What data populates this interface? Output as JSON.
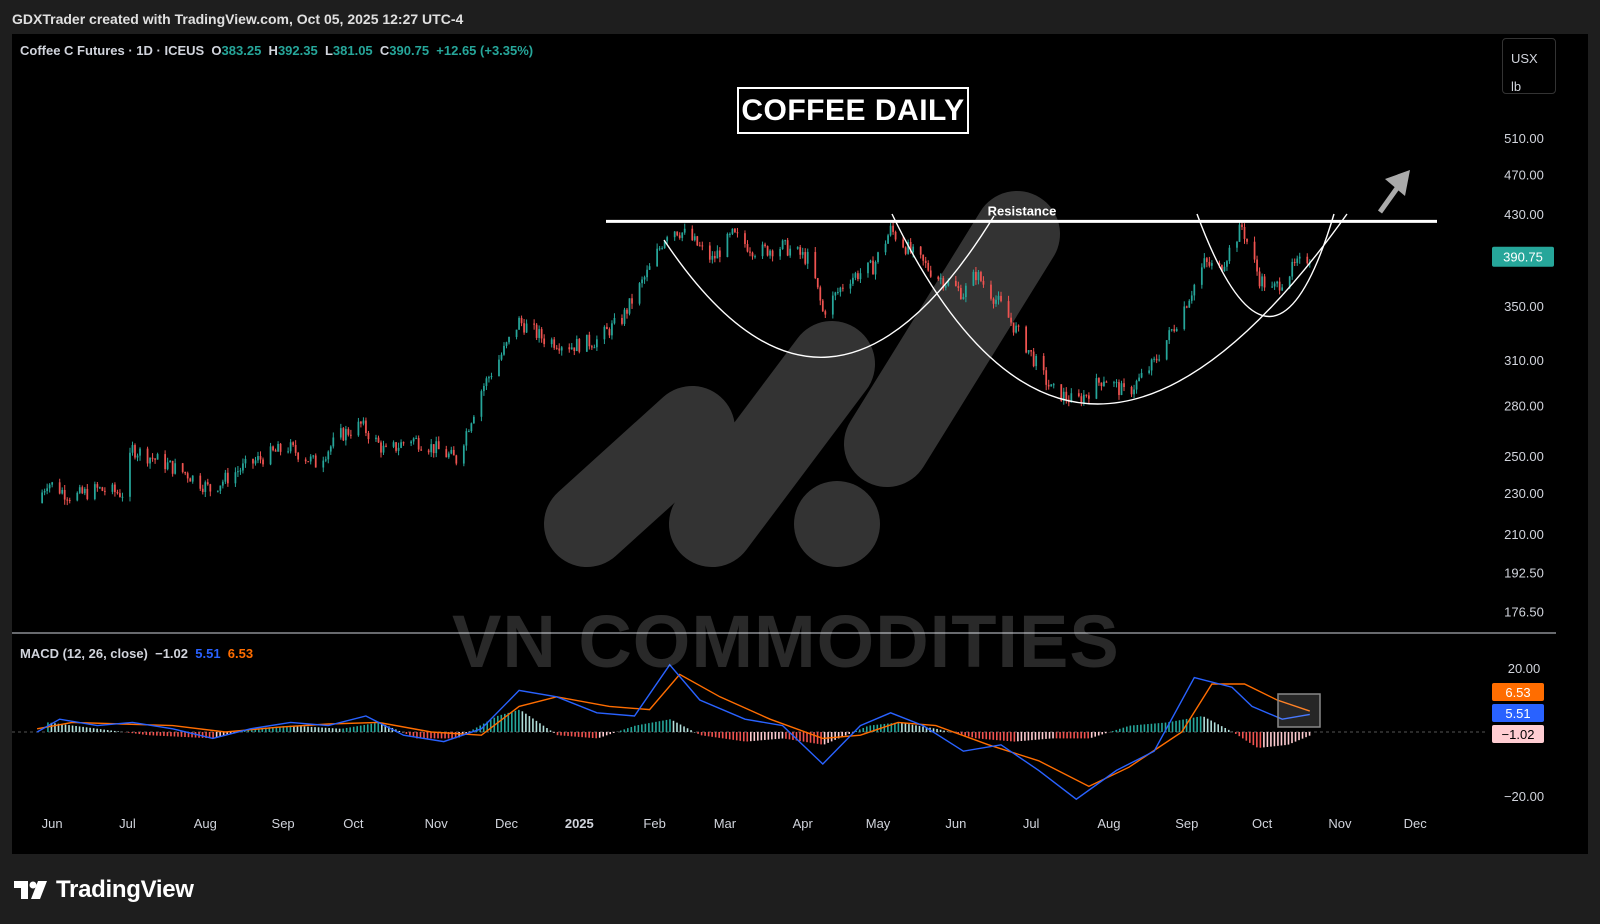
{
  "header": {
    "attribution": "GDXTrader created with TradingView.com, Oct 05, 2025 12:27 UTC-4"
  },
  "legend": {
    "symbol": "Coffee C Futures · 1D · ICEUS",
    "o_label": "O",
    "o_value": "383.25",
    "h_label": "H",
    "h_value": "392.35",
    "l_label": "L",
    "l_value": "381.05",
    "c_label": "C",
    "c_value": "390.75",
    "change": "+12.65 (+3.35%)"
  },
  "units": {
    "currency": "USX",
    "unit": "lb"
  },
  "annotations": {
    "title_box": "COFFEE DAILY",
    "resistance_label": "Resistance",
    "watermark": "VN COMMODITIES"
  },
  "macd_legend": {
    "label": "MACD (12, 26, close)",
    "hist": "−1.02",
    "macd": "5.51",
    "signal": "6.53"
  },
  "footer": {
    "brand": "TradingView"
  },
  "colors": {
    "up": "#26a69a",
    "down": "#ef5350",
    "macd_line": "#2962ff",
    "signal_line": "#ff6d00",
    "background": "#000000"
  },
  "chart_data": [
    {
      "type": "candlestick",
      "ylabel": "",
      "scale": "log",
      "ylim": [
        165,
        560
      ],
      "y_ticks": [
        "510.00",
        "470.00",
        "430.00",
        "350.00",
        "310.00",
        "280.00",
        "250.00",
        "230.00",
        "210.00",
        "192.50",
        "176.50"
      ],
      "x_ticks": [
        "Jun",
        "Jul",
        "Aug",
        "Sep",
        "Oct",
        "Nov",
        "Dec",
        "2025",
        "Feb",
        "Mar",
        "Apr",
        "May",
        "Jun",
        "Jul",
        "Aug",
        "Sep",
        "Oct",
        "Nov",
        "Dec"
      ],
      "last_price_label": "390.75",
      "resistance_level": 423,
      "close_path": [
        [
          "2024-06-01",
          225
        ],
        [
          "2024-06-05",
          236
        ],
        [
          "2024-06-15",
          228
        ],
        [
          "2024-06-25",
          232
        ],
        [
          "2024-07-05",
          230
        ],
        [
          "2024-07-09",
          254
        ],
        [
          "2024-07-20",
          247
        ],
        [
          "2024-07-31",
          240
        ],
        [
          "2024-08-09",
          232
        ],
        [
          "2024-08-20",
          242
        ],
        [
          "2024-08-31",
          250
        ],
        [
          "2024-09-09",
          255
        ],
        [
          "2024-09-20",
          246
        ],
        [
          "2024-09-30",
          262
        ],
        [
          "2024-10-08",
          268
        ],
        [
          "2024-10-18",
          252
        ],
        [
          "2024-10-28",
          260
        ],
        [
          "2024-11-07",
          254
        ],
        [
          "2024-11-15",
          248
        ],
        [
          "2024-11-25",
          290
        ],
        [
          "2024-12-05",
          320
        ],
        [
          "2024-12-10",
          338
        ],
        [
          "2024-12-20",
          325
        ],
        [
          "2024-12-31",
          320
        ],
        [
          "2025-01-10",
          324
        ],
        [
          "2025-01-20",
          340
        ],
        [
          "2025-01-31",
          380
        ],
        [
          "2025-02-08",
          418
        ],
        [
          "2025-02-15",
          410
        ],
        [
          "2025-02-25",
          388
        ],
        [
          "2025-03-05",
          410
        ],
        [
          "2025-03-15",
          395
        ],
        [
          "2025-03-25",
          400
        ],
        [
          "2025-04-05",
          388
        ],
        [
          "2025-04-10",
          345
        ],
        [
          "2025-04-20",
          372
        ],
        [
          "2025-04-30",
          382
        ],
        [
          "2025-05-07",
          415
        ],
        [
          "2025-05-15",
          395
        ],
        [
          "2025-05-25",
          375
        ],
        [
          "2025-06-05",
          360
        ],
        [
          "2025-06-10",
          376
        ],
        [
          "2025-06-20",
          350
        ],
        [
          "2025-06-30",
          320
        ],
        [
          "2025-07-10",
          290
        ],
        [
          "2025-07-20",
          282
        ],
        [
          "2025-07-31",
          298
        ],
        [
          "2025-08-09",
          287
        ],
        [
          "2025-08-20",
          308
        ],
        [
          "2025-08-31",
          345
        ],
        [
          "2025-09-09",
          385
        ],
        [
          "2025-09-15",
          380
        ],
        [
          "2025-09-24",
          418
        ],
        [
          "2025-10-01",
          372
        ],
        [
          "2025-10-06",
          362
        ],
        [
          "2025-10-15",
          382
        ],
        [
          "2025-10-21",
          390.75
        ]
      ]
    },
    {
      "type": "line",
      "title": "MACD (12, 26, close)",
      "ylim": [
        -24,
        24
      ],
      "y_ticks": [
        "20.00",
        "−20.00"
      ],
      "value_labels": [
        "6.53",
        "5.51",
        "−1.02"
      ],
      "series": [
        {
          "name": "MACD",
          "values": [
            [
              "2024-06-01",
              0
            ],
            [
              "2024-06-10",
              4
            ],
            [
              "2024-06-25",
              2
            ],
            [
              "2024-07-09",
              3
            ],
            [
              "2024-07-25",
              1
            ],
            [
              "2024-08-10",
              -2
            ],
            [
              "2024-08-25",
              1
            ],
            [
              "2024-09-10",
              3
            ],
            [
              "2024-09-25",
              2
            ],
            [
              "2024-10-10",
              5
            ],
            [
              "2024-10-25",
              -1
            ],
            [
              "2024-11-10",
              -3
            ],
            [
              "2024-11-25",
              1
            ],
            [
              "2024-12-10",
              13
            ],
            [
              "2024-12-25",
              11
            ],
            [
              "2025-01-10",
              6
            ],
            [
              "2025-01-25",
              5
            ],
            [
              "2025-02-08",
              21
            ],
            [
              "2025-02-20",
              10
            ],
            [
              "2025-03-10",
              4
            ],
            [
              "2025-03-25",
              2
            ],
            [
              "2025-04-10",
              -10
            ],
            [
              "2025-04-25",
              2
            ],
            [
              "2025-05-07",
              6
            ],
            [
              "2025-05-20",
              2
            ],
            [
              "2025-06-05",
              -6
            ],
            [
              "2025-06-20",
              -4
            ],
            [
              "2025-07-05",
              -12
            ],
            [
              "2025-07-20",
              -21
            ],
            [
              "2025-08-05",
              -12
            ],
            [
              "2025-08-20",
              -6
            ],
            [
              "2025-09-05",
              17
            ],
            [
              "2025-09-20",
              14
            ],
            [
              "2025-09-28",
              8
            ],
            [
              "2025-10-10",
              4
            ],
            [
              "2025-10-21",
              5.51
            ]
          ]
        },
        {
          "name": "Signal",
          "values": [
            [
              "2024-06-01",
              1
            ],
            [
              "2024-06-15",
              3
            ],
            [
              "2024-07-05",
              2.5
            ],
            [
              "2024-07-25",
              2
            ],
            [
              "2024-08-15",
              0
            ],
            [
              "2024-09-05",
              1.5
            ],
            [
              "2024-09-25",
              2.5
            ],
            [
              "2024-10-15",
              3
            ],
            [
              "2024-11-05",
              0
            ],
            [
              "2024-11-25",
              -1
            ],
            [
              "2024-12-10",
              8
            ],
            [
              "2024-12-25",
              11
            ],
            [
              "2025-01-15",
              8
            ],
            [
              "2025-01-31",
              7
            ],
            [
              "2025-02-12",
              18
            ],
            [
              "2025-02-28",
              11
            ],
            [
              "2025-03-20",
              4
            ],
            [
              "2025-04-10",
              -2
            ],
            [
              "2025-04-25",
              -1
            ],
            [
              "2025-05-10",
              3
            ],
            [
              "2025-05-25",
              2
            ],
            [
              "2025-06-15",
              -4
            ],
            [
              "2025-07-05",
              -9
            ],
            [
              "2025-07-25",
              -17
            ],
            [
              "2025-08-10",
              -11
            ],
            [
              "2025-08-31",
              0
            ],
            [
              "2025-09-12",
              15
            ],
            [
              "2025-09-25",
              15
            ],
            [
              "2025-10-08",
              10
            ],
            [
              "2025-10-21",
              6.53
            ]
          ]
        },
        {
          "name": "Histogram",
          "values": [
            [
              "2024-06-05",
              3
            ],
            [
              "2024-06-25",
              1
            ],
            [
              "2024-07-15",
              -1
            ],
            [
              "2024-08-10",
              -2
            ],
            [
              "2024-08-25",
              1
            ],
            [
              "2024-09-10",
              2
            ],
            [
              "2024-09-30",
              1
            ],
            [
              "2024-10-15",
              3
            ],
            [
              "2024-10-30",
              -2
            ],
            [
              "2024-11-15",
              -2
            ],
            [
              "2024-12-01",
              5
            ],
            [
              "2024-12-10",
              7
            ],
            [
              "2024-12-25",
              -1
            ],
            [
              "2025-01-10",
              -2
            ],
            [
              "2025-01-25",
              2
            ],
            [
              "2025-02-08",
              4
            ],
            [
              "2025-02-20",
              -1
            ],
            [
              "2025-03-10",
              -3
            ],
            [
              "2025-03-25",
              -2
            ],
            [
              "2025-04-10",
              -4
            ],
            [
              "2025-04-28",
              2
            ],
            [
              "2025-05-10",
              3
            ],
            [
              "2025-05-25",
              1
            ],
            [
              "2025-06-10",
              -2
            ],
            [
              "2025-06-25",
              -3
            ],
            [
              "2025-07-10",
              -2
            ],
            [
              "2025-07-25",
              -2
            ],
            [
              "2025-08-10",
              2
            ],
            [
              "2025-08-25",
              3
            ],
            [
              "2025-09-08",
              5
            ],
            [
              "2025-09-20",
              0
            ],
            [
              "2025-09-30",
              -5
            ],
            [
              "2025-10-12",
              -4
            ],
            [
              "2025-10-21",
              -1.02
            ]
          ]
        }
      ]
    }
  ]
}
